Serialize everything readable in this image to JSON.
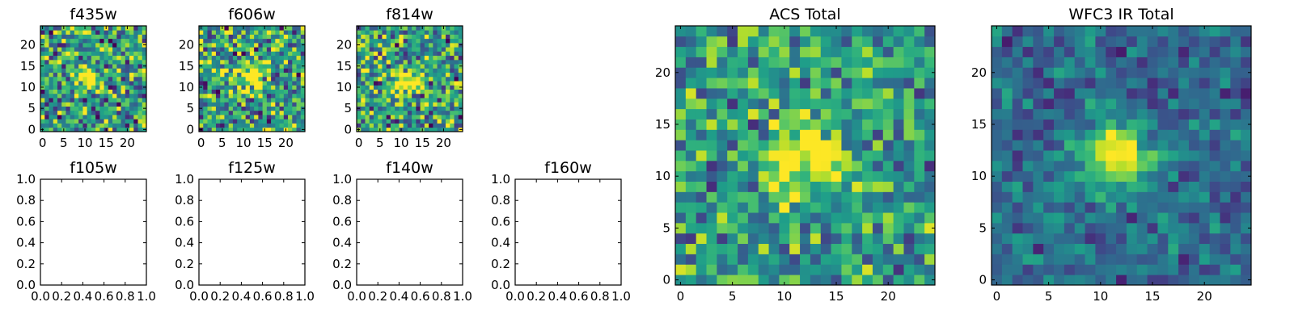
{
  "chart_data": [
    {
      "type": "heatmap",
      "title": "f435w",
      "xticks": [
        "0",
        "5",
        "10",
        "15",
        "20"
      ],
      "yticks": [
        "0",
        "5",
        "10",
        "15",
        "20"
      ],
      "xlim": [
        -0.5,
        24.5
      ],
      "ylim": [
        -0.5,
        24.5
      ],
      "colormap": "viridis",
      "source_peak": [
        11.5,
        11.5
      ],
      "noise_level": 0.62,
      "seed": 11
    },
    {
      "type": "heatmap",
      "title": "f606w",
      "xticks": [
        "0",
        "5",
        "10",
        "15",
        "20"
      ],
      "yticks": [
        "0",
        "5",
        "10",
        "15",
        "20"
      ],
      "xlim": [
        -0.5,
        24.5
      ],
      "ylim": [
        -0.5,
        24.5
      ],
      "colormap": "viridis",
      "source_peak": [
        11.5,
        12.5
      ],
      "noise_level": 0.62,
      "seed": 23
    },
    {
      "type": "heatmap",
      "title": "f814w",
      "xticks": [
        "0",
        "5",
        "10",
        "15",
        "20"
      ],
      "yticks": [
        "0",
        "5",
        "10",
        "15",
        "20"
      ],
      "xlim": [
        -0.5,
        24.5
      ],
      "ylim": [
        -0.5,
        24.5
      ],
      "colormap": "viridis",
      "source_peak": [
        12.0,
        11.5
      ],
      "noise_level": 0.6,
      "seed": 37
    },
    {
      "type": "heatmap",
      "title": "f105w",
      "empty": true,
      "xticks": [
        "0.0",
        "0.2",
        "0.4",
        "0.6",
        "0.8",
        "1.0"
      ],
      "yticks": [
        "0.0",
        "0.2",
        "0.4",
        "0.6",
        "0.8",
        "1.0"
      ],
      "xlim": [
        0,
        1
      ],
      "ylim": [
        0,
        1
      ]
    },
    {
      "type": "heatmap",
      "title": "f125w",
      "empty": true,
      "xticks": [
        "0.0",
        "0.2",
        "0.4",
        "0.6",
        "0.8",
        "1.0"
      ],
      "yticks": [
        "0.0",
        "0.2",
        "0.4",
        "0.6",
        "0.8",
        "1.0"
      ],
      "xlim": [
        0,
        1
      ],
      "ylim": [
        0,
        1
      ]
    },
    {
      "type": "heatmap",
      "title": "f140w",
      "empty": true,
      "xticks": [
        "0.0",
        "0.2",
        "0.4",
        "0.6",
        "0.8",
        "1.0"
      ],
      "yticks": [
        "0.0",
        "0.2",
        "0.4",
        "0.6",
        "0.8",
        "1.0"
      ],
      "xlim": [
        0,
        1
      ],
      "ylim": [
        0,
        1
      ]
    },
    {
      "type": "heatmap",
      "title": "f160w",
      "empty": true,
      "xticks": [
        "0.0",
        "0.2",
        "0.4",
        "0.6",
        "0.8",
        "1.0"
      ],
      "yticks": [
        "0.0",
        "0.2",
        "0.4",
        "0.6",
        "0.8",
        "1.0"
      ],
      "xlim": [
        0,
        1
      ],
      "ylim": [
        0,
        1
      ]
    },
    {
      "type": "heatmap",
      "title": "ACS Total",
      "xticks": [
        "0",
        "5",
        "10",
        "15",
        "20"
      ],
      "yticks": [
        "0",
        "5",
        "10",
        "15",
        "20"
      ],
      "xlim": [
        -0.5,
        24.5
      ],
      "ylim": [
        -0.5,
        24.5
      ],
      "colormap": "viridis",
      "source_peak": [
        12.0,
        12.0
      ],
      "noise_level": 0.45,
      "seed": 53
    },
    {
      "type": "heatmap",
      "title": "WFC3 IR Total",
      "xticks": [
        "0",
        "5",
        "10",
        "15",
        "20"
      ],
      "yticks": [
        "0",
        "5",
        "10",
        "15",
        "20"
      ],
      "xlim": [
        -0.5,
        24.5
      ],
      "ylim": [
        -0.5,
        24.5
      ],
      "colormap": "viridis",
      "source_peak": [
        11.5,
        12.0
      ],
      "noise_level": 0.28,
      "seed": 71
    }
  ]
}
